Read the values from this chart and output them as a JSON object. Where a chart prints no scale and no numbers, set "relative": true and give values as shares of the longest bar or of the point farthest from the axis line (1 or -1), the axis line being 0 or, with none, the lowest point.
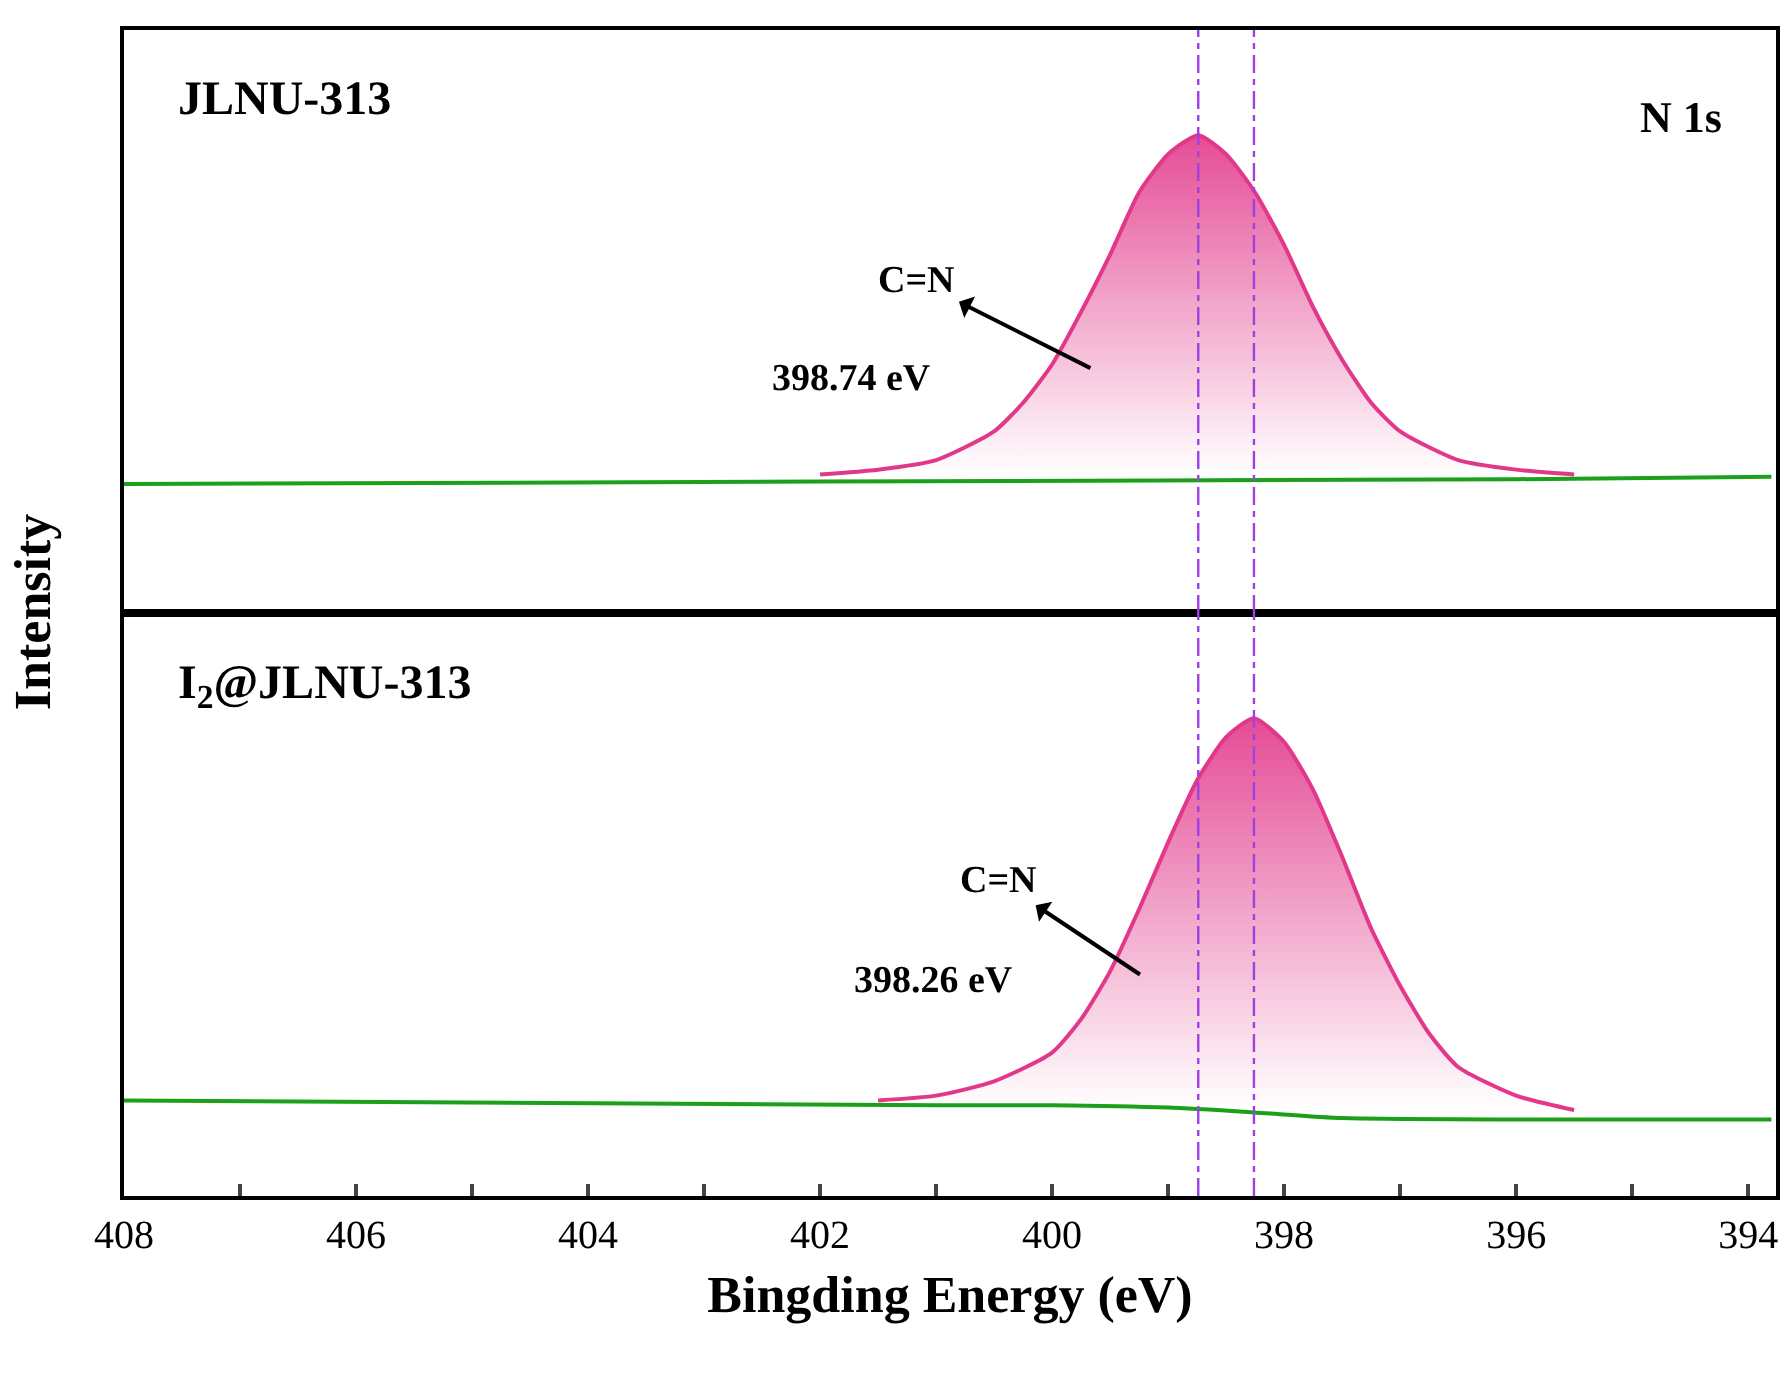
{
  "chart_data": [
    {
      "type": "line",
      "title": "JLNU-313",
      "ylabel": "Intensity",
      "relative": true,
      "tick_labels": false,
      "xlim": [
        408,
        393.76
      ],
      "series": [
        {
          "color": "#1aa01a",
          "x": [
            408,
            402,
            396,
            393.8
          ],
          "values": [
            0.27,
            0.275,
            0.28,
            0.285
          ]
        },
        {
          "type": "area",
          "color": "#e2388a",
          "x": [
            402,
            401.5,
            401,
            400.5,
            400.25,
            400,
            399.75,
            399.5,
            399.25,
            399,
            398.74,
            398.5,
            398.25,
            398,
            397.75,
            397.5,
            397.25,
            397,
            396.5,
            396,
            395.5
          ],
          "values": [
            0.29,
            0.3,
            0.32,
            0.38,
            0.44,
            0.52,
            0.63,
            0.75,
            0.88,
            0.96,
            1,
            0.96,
            0.88,
            0.77,
            0.64,
            0.53,
            0.44,
            0.38,
            0.32,
            0.3,
            0.29
          ]
        }
      ],
      "ref_lines": [
        {
          "axis": "x",
          "value": 398.74,
          "color": "#a040e0",
          "line_style": "dashed"
        },
        {
          "axis": "x",
          "value": 398.26,
          "color": "#a040e0",
          "line_style": "dashed"
        }
      ],
      "annotations": [
        "C=N",
        "398.74 eV",
        "N 1s"
      ]
    },
    {
      "type": "line",
      "title": "I$_{2}$@JLNU-313",
      "xlabel": "Bingding Energy (eV)",
      "relative": true,
      "tick_labels": "x",
      "xlim": [
        408,
        393.76
      ],
      "xticks": [
        408,
        {
          "value": 407,
          "label": null
        },
        406,
        {
          "value": 405,
          "label": null
        },
        404,
        {
          "value": 403,
          "label": null
        },
        402,
        {
          "value": 401,
          "label": null
        },
        400,
        {
          "value": 399,
          "label": null
        },
        398,
        {
          "value": 397,
          "label": null
        },
        396,
        {
          "value": 395,
          "label": null
        },
        394
      ],
      "series": [
        {
          "color": "#1aa01a",
          "x": [
            408,
            401,
            400,
            399,
            398.26,
            397.5,
            396,
            393.8
          ],
          "values": [
            0.2,
            0.19,
            0.19,
            0.185,
            0.175,
            0.163,
            0.16,
            0.16
          ]
        },
        {
          "type": "area",
          "color": "#e2388a",
          "x": [
            401.5,
            401,
            400.5,
            400,
            399.75,
            399.5,
            399.25,
            399,
            398.75,
            398.5,
            398.26,
            398,
            397.75,
            397.5,
            397.25,
            397,
            396.75,
            396.5,
            396,
            395.5
          ],
          "values": [
            0.2,
            0.21,
            0.24,
            0.3,
            0.37,
            0.47,
            0.6,
            0.74,
            0.87,
            0.96,
            1,
            0.95,
            0.85,
            0.71,
            0.56,
            0.44,
            0.34,
            0.27,
            0.21,
            0.18
          ]
        }
      ],
      "ref_lines": [
        {
          "axis": "x",
          "value": 398.74,
          "color": "#a040e0",
          "line_style": "dashed"
        },
        {
          "axis": "x",
          "value": 398.26,
          "color": "#a040e0",
          "line_style": "dashed"
        }
      ],
      "annotations": [
        "C=N",
        "398.26 eV"
      ]
    }
  ]
}
